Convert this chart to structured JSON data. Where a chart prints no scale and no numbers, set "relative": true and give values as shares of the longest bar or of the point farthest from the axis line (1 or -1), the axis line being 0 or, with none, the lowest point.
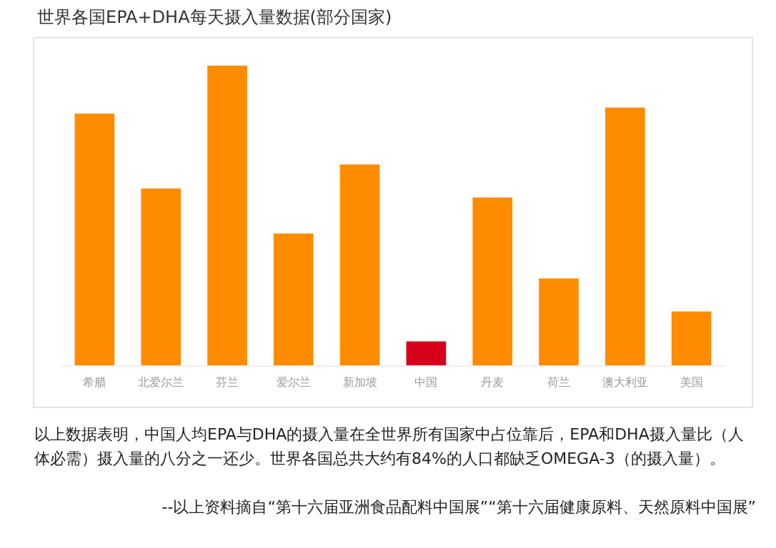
{
  "chart_data": {
    "type": "bar",
    "title": "世界各国EPA+DHA每天摄入量数据(部分国家)",
    "categories": [
      "希腊",
      "北爱尔兰",
      "芬兰",
      "爱尔兰",
      "新加坡",
      "中国",
      "丹麦",
      "荷兰",
      "澳大利亚",
      "美国"
    ],
    "values": [
      0.84,
      0.59,
      1,
      0.44,
      0.67,
      0.08,
      0.56,
      0.29,
      0.86,
      0.18
    ],
    "colors": [
      "#ff8c00",
      "#ff8c00",
      "#ff8c00",
      "#ff8c00",
      "#ff8c00",
      "#d7001a",
      "#ff8c00",
      "#ff8c00",
      "#ff8c00",
      "#ff8c00"
    ],
    "relative": true,
    "annotations": [
      "以上数据表明，中国人均EPA与DHA的摄入量在全世界所有国家中占位靠后，EPA和DHA摄入量比（人体必需）摄入量的八分之一还少。世界各国总共大约有84%的人口都缺乏OMEGA-3（的摄入量）。",
      "--以上资料摘自“第十六届亚洲食品配料中国展”“第十六届健康原料、天然原料中国展”"
    ]
  }
}
